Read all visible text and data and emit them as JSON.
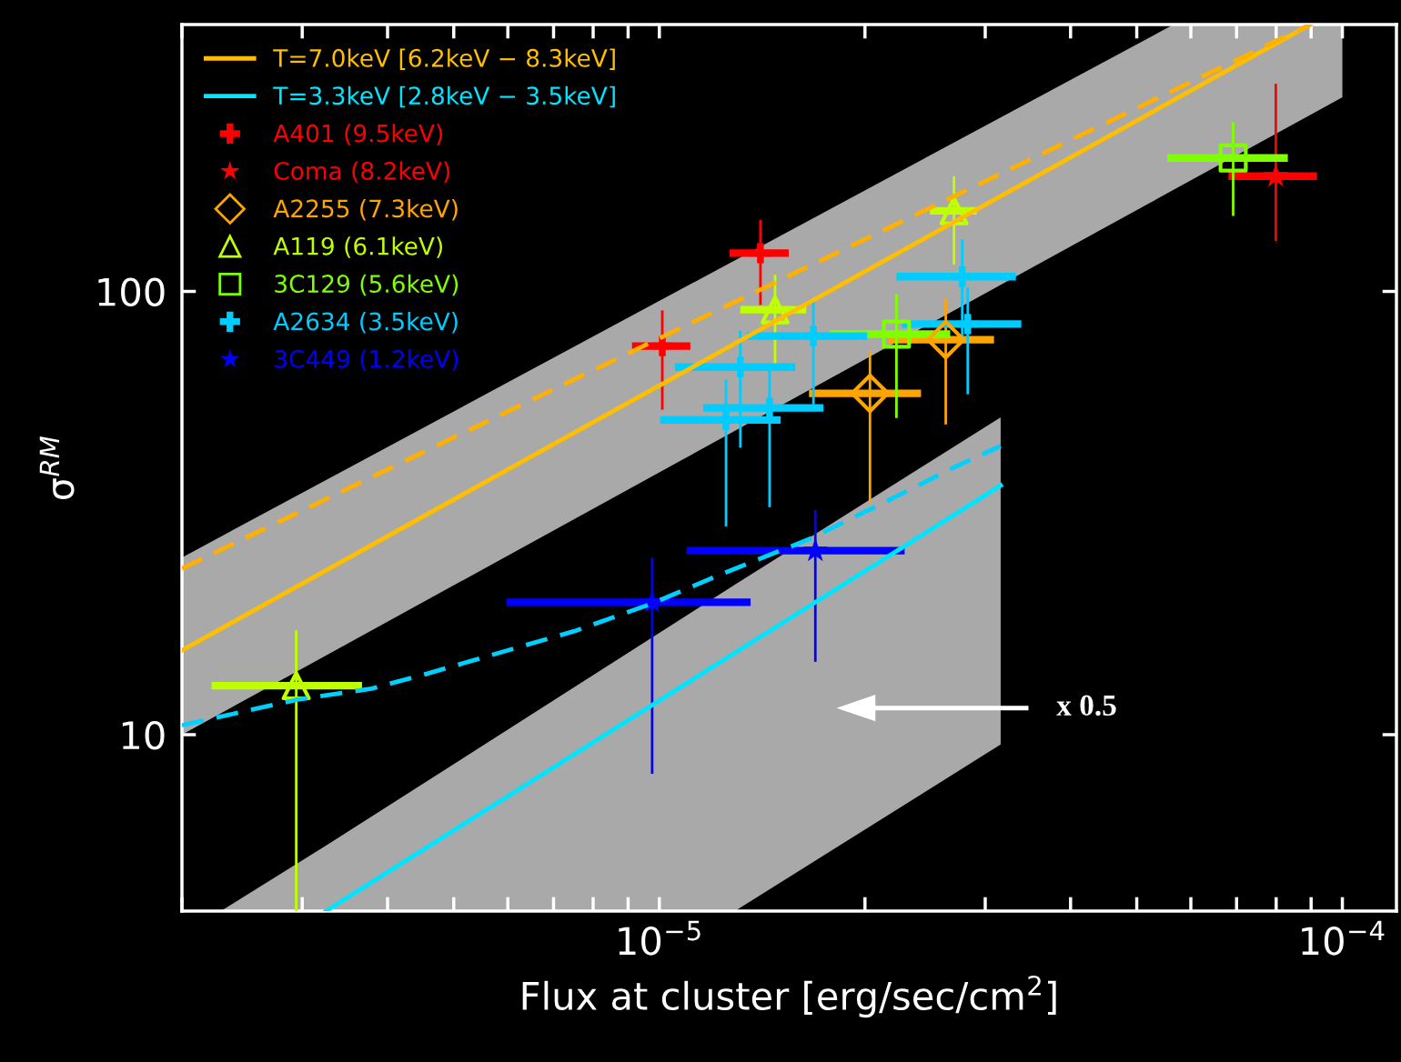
{
  "chart_data": {
    "type": "scatter",
    "xlabel": "Flux at cluster [erg/sec/cm$^{2}$]",
    "ylabel": "σ$^{RM}$",
    "log": "xy",
    "xlim": [
      2e-06,
      0.00012
    ],
    "ylim": [
      4,
      400
    ],
    "xticks": [
      {
        "value": 1e-05,
        "label": "10$^{−5}$"
      },
      {
        "value": 0.0001,
        "label": "10$^{−4}$"
      }
    ],
    "yticks": [
      10,
      100
    ],
    "grid": false,
    "legend": "top left",
    "annotations": [
      "x 0.5"
    ],
    "series": [
      {
        "type": "line",
        "name": "T=7.0keV [6.2keV − 8.3keV]",
        "color": "#ffbf00",
        "line_style": "solid",
        "x": [
          2e-06,
          5.66e-05,
          8.97e-05,
          0.0001
        ],
        "values": [
          15.5,
          270,
          400,
          null
        ],
        "lower": [
          10,
          169.5,
          250,
          274
        ],
        "upper": [
          25.1,
          400,
          400,
          400
        ]
      },
      {
        "type": "line",
        "name": "T=3.3keV [2.8keV − 3.5keV]",
        "color": "#00e5ff",
        "line_style": "solid",
        "x": [
          2.28e-06,
          3.25e-06,
          1.29e-05,
          3.16e-05
        ],
        "values": [
          null,
          4,
          15.3,
          36.5
        ],
        "lower": [
          4,
          4,
          4,
          9.5
        ],
        "upper": [
          4,
          5.62,
          21.8,
          52
        ]
      },
      {
        "type": "line",
        "color": "#ffb000",
        "line_style": "dashed",
        "x": [
          2e-06,
          8.97e-05
        ],
        "values": [
          23.7,
          400
        ]
      },
      {
        "type": "line",
        "color": "#00d0ff",
        "line_style": "dashed",
        "x": [
          2e-06,
          2.95e-06,
          3.79e-06,
          4.55e-06,
          6e-06,
          7.49e-06,
          9.7e-06,
          1.256e-05,
          1.656e-05,
          2.2e-05,
          2.71e-05,
          3.16e-05
        ],
        "values": [
          10.5,
          12.0,
          12.7,
          13.7,
          15.5,
          17.1,
          19.7,
          23.3,
          27.6,
          34.2,
          40.2,
          44.8
        ]
      },
      {
        "type": "scatter",
        "name": "A401 (9.5keV)",
        "color": "#ff0000",
        "marker": "cross",
        "x": [
          1.01e-05,
          1.406e-05
        ],
        "values": [
          75.3,
          122
        ],
        "errors": [
          [
            54.1,
            90.6
          ],
          [
            93.2,
            145
          ]
        ],
        "xerrors": [
          [
            9.12e-06,
            1.11e-05
          ],
          [
            1.267e-05,
            1.547e-05
          ]
        ]
      },
      {
        "type": "scatter",
        "name": "Coma (8.2keV)",
        "color": "#ff0000",
        "marker": "star",
        "x": [
          7.99e-05
        ],
        "values": [
          182
        ],
        "errors": [
          [
            130,
            294
          ]
        ],
        "xerrors": [
          [
            6.81e-05,
            9.18e-05
          ]
        ]
      },
      {
        "type": "scatter",
        "name": "A2255 (7.3keV)",
        "color": "#ffa500",
        "marker": "diamond",
        "x": [
          2.034e-05,
          2.626e-05
        ],
        "values": [
          58.9,
          77.8
        ],
        "errors": [
          [
            33.2,
            73.5
          ],
          [
            50.1,
            96.3
          ]
        ],
        "xerrors": [
          [
            1.656e-05,
            2.416e-05
          ],
          [
            2.163e-05,
            3.09e-05
          ]
        ]
      },
      {
        "type": "scatter",
        "name": "A119 (6.1keV)",
        "color": "#c0ff00",
        "marker": "triangle",
        "x": [
          2.94e-06,
          1.477e-05,
          2.7e-05
        ],
        "values": [
          12.9,
          90.9,
          152
        ],
        "errors": [
          [
            4,
            17.2
          ],
          [
            68.5,
            109
          ],
          [
            115,
            182
          ]
        ],
        "xerrors": [
          [
            2.21e-06,
            3.67e-06
          ],
          [
            1.314e-05,
            1.641e-05
          ],
          [
            2.49e-05,
            2.915e-05
          ]
        ]
      },
      {
        "type": "scatter",
        "name": "3C129 (5.6keV)",
        "color": "#80ff00",
        "marker": "square",
        "x": [
          2.224e-05,
          6.92e-05
        ],
        "values": [
          80.1,
          200
        ],
        "errors": [
          [
            51.8,
            98.6
          ],
          [
            148,
            241
          ]
        ],
        "xerrors": [
          [
            1.777e-05,
            2.666e-05
          ],
          [
            5.54e-05,
            8.32e-05
          ]
        ]
      },
      {
        "type": "scatter",
        "name": "A2634 (3.5keV)",
        "color": "#00ccff",
        "marker": "cross",
        "x": [
          2.776e-05,
          2.828e-05,
          1.681e-05,
          1.314e-05,
          1.45e-05,
          1.252e-05
        ],
        "values": [
          108,
          84.4,
          79.3,
          67.5,
          54.6,
          51.3
        ],
        "errors": [
          [
            77.8,
            131
          ],
          [
            58.6,
            102
          ],
          [
            55.4,
            95.8
          ],
          [
            44.4,
            81.6
          ],
          [
            32.6,
            66.3
          ],
          [
            29.5,
            63.2
          ]
        ],
        "xerrors": [
          [
            2.224e-05,
            3.327e-05
          ],
          [
            2.265e-05,
            3.388e-05
          ],
          [
            1.343e-05,
            2.015e-05
          ],
          [
            1.054e-05,
            1.581e-05
          ],
          [
            1.159e-05,
            1.739e-05
          ],
          [
            1.003e-05,
            1.505e-05
          ]
        ]
      },
      {
        "type": "scatter",
        "name": "3C449 (1.2keV)",
        "color": "#0000ff",
        "marker": "star",
        "x": [
          9.76e-06,
          1.692e-05
        ],
        "values": [
          19.9,
          26.0
        ],
        "errors": [
          [
            8.16,
            25.1
          ],
          [
            14.6,
            32.1
          ]
        ],
        "xerrors": [
          [
            5.97e-06,
            1.36e-05
          ],
          [
            1.096e-05,
            2.286e-05
          ]
        ]
      }
    ]
  }
}
